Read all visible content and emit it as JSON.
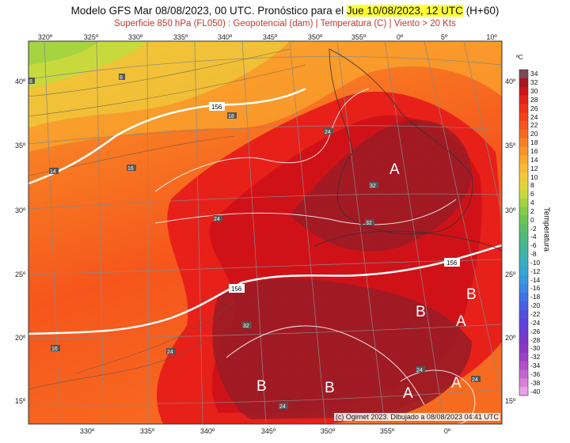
{
  "header": {
    "title_prefix": "Modelo GFS Mar 08/08/2023, 00 UTC. Pronóstico para el ",
    "title_highlight": "Jue 10/08/2023, 12 UTC",
    "title_suffix": " (H+60)",
    "subtitle": "Superficie 850 hPa (FL050) : Geopotencial (dam) | Temperatura (C) | Viento > 20 Kts"
  },
  "axes": {
    "lon_top": [
      "320º",
      "325º",
      "330º",
      "335º",
      "340º",
      "345º",
      "350º",
      "355º",
      "0º",
      "5º",
      "10º"
    ],
    "lon_bottom": [
      "330º",
      "335º",
      "340º",
      "345º",
      "350º",
      "355º",
      "0º"
    ],
    "lat_left": [
      "40º",
      "35º",
      "30º",
      "25º",
      "20º",
      "15º"
    ],
    "lat_right": [
      "40º",
      "35º",
      "30º",
      "25º",
      "20º",
      "15º"
    ]
  },
  "legend": {
    "unit": "ºC",
    "label": "Temperatura",
    "ticks": [
      "34",
      "32",
      "30",
      "28",
      "26",
      "24",
      "22",
      "20",
      "18",
      "16",
      "14",
      "12",
      "10",
      "8",
      "6",
      "4",
      "2",
      "0",
      "-2",
      "-4",
      "-6",
      "-8",
      "-10",
      "-12",
      "-14",
      "-16",
      "-18",
      "-20",
      "-22",
      "-24",
      "-26",
      "-28",
      "-30",
      "-32",
      "-34",
      "-36",
      "-38",
      "-40"
    ],
    "colors": [
      "#7a4a55",
      "#a31822",
      "#d01218",
      "#e8201a",
      "#f23018",
      "#f5421a",
      "#f6561c",
      "#f76b20",
      "#f88024",
      "#f99528",
      "#faa82e",
      "#f7bb33",
      "#f0c93a",
      "#e4d43c",
      "#c8d93e",
      "#a6d440",
      "#86cc46",
      "#6cc452",
      "#5dbd66",
      "#4fb97c",
      "#45b592",
      "#3eb3a8",
      "#3aaec0",
      "#37a6d4",
      "#369ae0",
      "#3a88e4",
      "#4074e6",
      "#4860e6",
      "#5250e2",
      "#5e44dc",
      "#6c3cd4",
      "#7c38cc",
      "#8c38c4",
      "#9c40c4",
      "#b050c8",
      "#c466d0",
      "#d880da",
      "#eaa0e6"
    ]
  },
  "map_labels": {
    "isohypse": [
      "156",
      "156",
      "156"
    ],
    "pressure_centers": [
      "A",
      "A",
      "A",
      "A",
      "A",
      "B",
      "B",
      "B",
      "B"
    ],
    "temp_labels": [
      "8",
      "8",
      "18",
      "16",
      "14",
      "24",
      "24",
      "24",
      "24",
      "24",
      "32",
      "32",
      "32",
      "16",
      "24"
    ]
  },
  "credit": "(c) Ogimet 2023. Dibujado a 08/08/2023 04:41 UTC"
}
